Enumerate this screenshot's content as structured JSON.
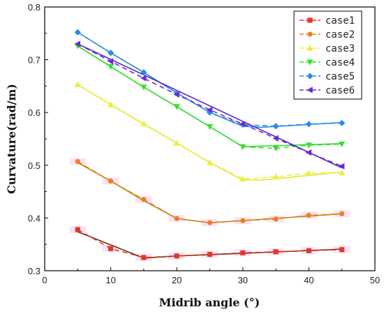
{
  "chart_data": {
    "type": "line",
    "title": "",
    "xlabel": "Midrib angle (°)",
    "ylabel": "Curvature(rad/m)",
    "xlim": [
      0,
      50
    ],
    "ylim": [
      0.3,
      0.8
    ],
    "xticks": [
      "0",
      "10",
      "20",
      "30",
      "40",
      "50"
    ],
    "yticks": [
      "0.3",
      "0.4",
      "0.5",
      "0.6",
      "0.7",
      "0.8"
    ],
    "grid": false,
    "legend_position": "top-right",
    "x": [
      5,
      10,
      15,
      20,
      25,
      30,
      35,
      40,
      45
    ],
    "series": [
      {
        "name": "case1",
        "color": "#e8352b",
        "marker": "square",
        "values": [
          0.378,
          0.342,
          0.325,
          0.328,
          0.331,
          0.334,
          0.336,
          0.338,
          0.34
        ],
        "fit": [
          [
            5,
            0.374
          ],
          [
            15,
            0.324
          ],
          [
            20,
            0.328
          ],
          [
            30,
            0.333
          ],
          [
            45,
            0.341
          ]
        ],
        "fit_color": "#6b3410"
      },
      {
        "name": "case2",
        "color": "#f07d22",
        "marker": "circle",
        "values": [
          0.507,
          0.47,
          0.435,
          0.399,
          0.391,
          0.395,
          0.398,
          0.405,
          0.408
        ],
        "fit": [
          [
            5,
            0.505
          ],
          [
            10,
            0.47
          ],
          [
            15,
            0.433
          ],
          [
            20,
            0.399
          ],
          [
            25,
            0.391
          ],
          [
            30,
            0.395
          ],
          [
            45,
            0.408
          ]
        ],
        "fit_color": "#b08a12"
      },
      {
        "name": "case3",
        "color": "#eced3a",
        "marker": "triangle-up",
        "values": [
          0.653,
          0.615,
          0.579,
          0.542,
          0.505,
          0.474,
          0.478,
          0.485,
          0.486
        ],
        "fit": [
          [
            5,
            0.653
          ],
          [
            10,
            0.615
          ],
          [
            15,
            0.578
          ],
          [
            20,
            0.542
          ],
          [
            25,
            0.505
          ],
          [
            30,
            0.472
          ],
          [
            33,
            0.472
          ],
          [
            45,
            0.487
          ]
        ],
        "fit_color": "#e6e62a"
      },
      {
        "name": "case4",
        "color": "#36e02c",
        "marker": "triangle-down",
        "values": [
          0.726,
          0.687,
          0.648,
          0.611,
          0.573,
          0.535,
          0.532,
          0.538,
          0.54
        ],
        "fit": [
          [
            5,
            0.726
          ],
          [
            10,
            0.687
          ],
          [
            15,
            0.648
          ],
          [
            20,
            0.611
          ],
          [
            25,
            0.573
          ],
          [
            30,
            0.535
          ],
          [
            45,
            0.541
          ]
        ],
        "fit_color": "#2ed826"
      },
      {
        "name": "case5",
        "color": "#2b8de0",
        "marker": "diamond",
        "values": [
          0.752,
          0.713,
          0.676,
          0.637,
          0.6,
          0.577,
          0.574,
          0.578,
          0.58
        ],
        "fit": [
          [
            5,
            0.752
          ],
          [
            10,
            0.713
          ],
          [
            15,
            0.676
          ],
          [
            20,
            0.637
          ],
          [
            25,
            0.6
          ],
          [
            30,
            0.574
          ],
          [
            33,
            0.572
          ],
          [
            45,
            0.581
          ]
        ],
        "fit_color": "#2b8de0"
      },
      {
        "name": "case6",
        "color": "#6a2ad6",
        "marker": "triangle-left",
        "values": [
          0.73,
          0.697,
          0.665,
          0.634,
          0.605,
          0.578,
          0.551,
          0.524,
          0.498
        ],
        "fit": [
          [
            5,
            0.73
          ],
          [
            45,
            0.495
          ]
        ],
        "fit_color": "#5a22c8"
      }
    ]
  }
}
